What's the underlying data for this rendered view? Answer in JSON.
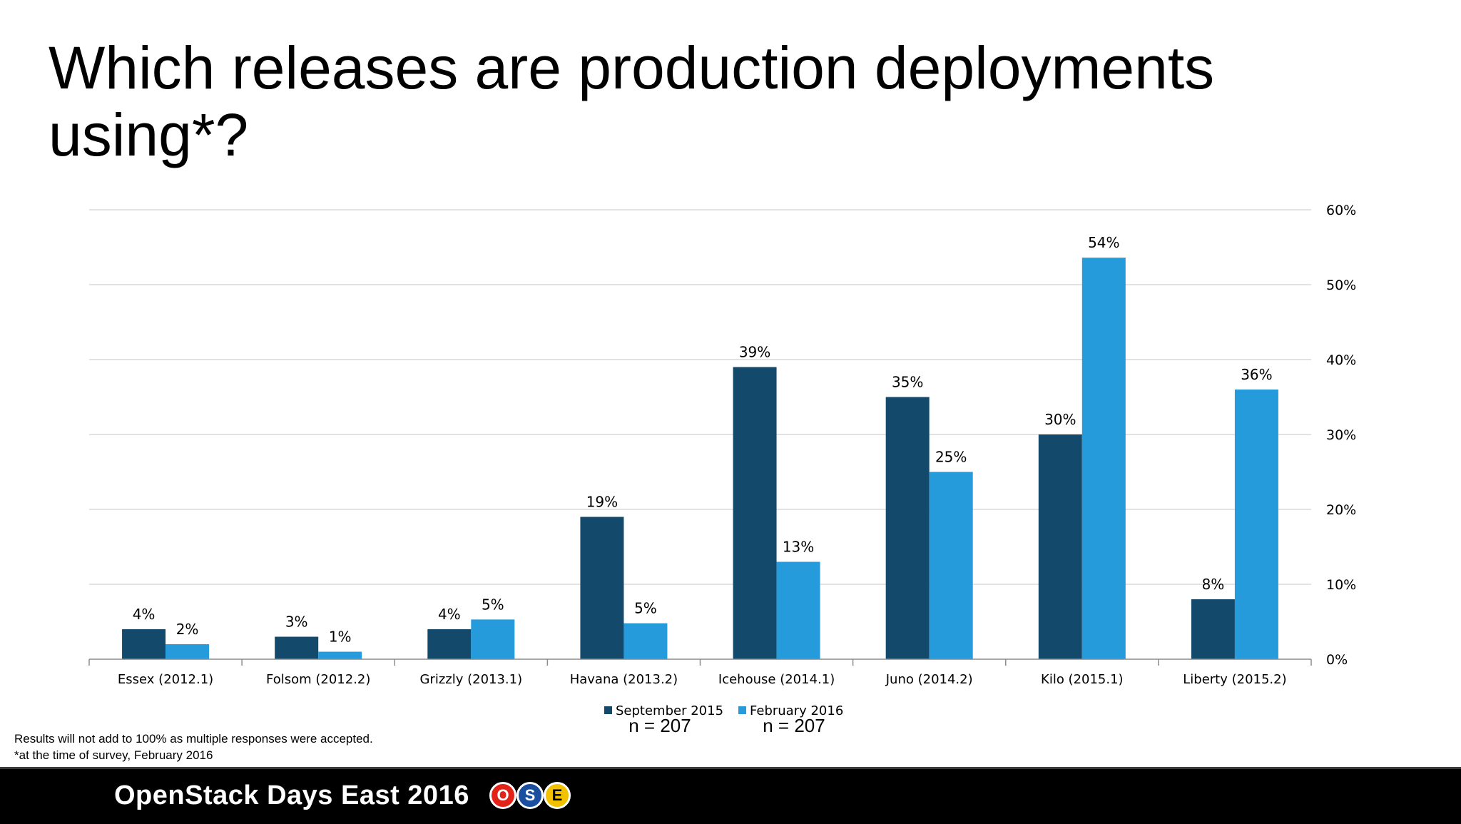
{
  "title": "Which releases are production deployments using*?",
  "chart_data": {
    "type": "bar",
    "categories": [
      "Essex (2012.1)",
      "Folsom (2012.2)",
      "Grizzly (2013.1)",
      "Havana (2013.2)",
      "Icehouse (2014.1)",
      "Juno (2014.2)",
      "Kilo (2015.1)",
      "Liberty (2015.2)"
    ],
    "series": [
      {
        "name": "September 2015",
        "color": "#134a6b",
        "values": [
          4,
          3,
          4,
          19,
          39,
          35,
          30,
          8
        ],
        "labels": [
          "4%",
          "3%",
          "4%",
          "19%",
          "39%",
          "35%",
          "30%",
          "8%"
        ]
      },
      {
        "name": "February 2016",
        "color": "#269bdb",
        "values": [
          2,
          1,
          5.3,
          4.8,
          13,
          25,
          53.6,
          36
        ],
        "labels": [
          "2%",
          "1%",
          "5%",
          "5%",
          "13%",
          "25%",
          "54%",
          "36%"
        ]
      }
    ],
    "ylim": [
      0,
      60
    ],
    "yticks": [
      0,
      10,
      20,
      30,
      40,
      50,
      60
    ],
    "ytick_labels": [
      "0%",
      "10%",
      "20%",
      "30%",
      "40%",
      "50%",
      "60%"
    ],
    "y_axis_side": "right",
    "grid": true,
    "legend_position": "bottom",
    "sample_sizes": [
      "n = 207",
      "n = 207"
    ]
  },
  "notes": [
    "Results will not add to 100% as multiple responses were accepted.",
    "*at the time of survey, February 2016"
  ],
  "footer": {
    "text": "OpenStack Days East 2016",
    "logo_letters": [
      "O",
      "S",
      "E"
    ],
    "logo_colors": [
      "#e2231a",
      "#1a4fa0",
      "#f2c200"
    ]
  }
}
